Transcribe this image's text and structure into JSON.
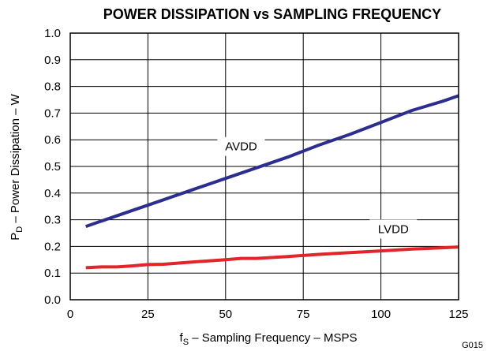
{
  "chart_data": {
    "type": "line",
    "title": "POWER DISSIPATION vs SAMPLING FREQUENCY",
    "xlabel": {
      "main": "f",
      "sub": "S",
      "rest": " – Sampling Frequency – MSPS"
    },
    "ylabel": {
      "main": "P",
      "sub": "D",
      "rest": " – Power Dissipation – W"
    },
    "xlim": [
      0,
      125
    ],
    "ylim": [
      0,
      1.0
    ],
    "x_ticks": [
      0,
      25,
      50,
      75,
      100,
      125
    ],
    "x_tick_labels": [
      "0",
      "25",
      "50",
      "75",
      "100",
      "125"
    ],
    "y_ticks": [
      0,
      0.1,
      0.2,
      0.3,
      0.4,
      0.5,
      0.6,
      0.7,
      0.8,
      0.9,
      1.0
    ],
    "y_tick_labels": [
      "0.0",
      "0.1",
      "0.2",
      "0.3",
      "0.4",
      "0.5",
      "0.6",
      "0.7",
      "0.8",
      "0.9",
      "1.0"
    ],
    "grid": true,
    "series": [
      {
        "name": "AVDD",
        "color": "#2b2e8f",
        "x": [
          5,
          10,
          20,
          30,
          40,
          50,
          60,
          70,
          80,
          90,
          100,
          110,
          120,
          125
        ],
        "values": [
          0.275,
          0.295,
          0.335,
          0.375,
          0.415,
          0.455,
          0.495,
          0.535,
          0.58,
          0.62,
          0.665,
          0.71,
          0.745,
          0.765
        ]
      },
      {
        "name": "LVDD",
        "color": "#e3242b",
        "x": [
          5,
          10,
          15,
          20,
          25,
          30,
          40,
          50,
          55,
          60,
          70,
          80,
          90,
          100,
          110,
          120,
          125
        ],
        "values": [
          0.12,
          0.123,
          0.123,
          0.127,
          0.132,
          0.133,
          0.142,
          0.15,
          0.155,
          0.155,
          0.162,
          0.17,
          0.177,
          0.183,
          0.19,
          0.195,
          0.198
        ]
      }
    ],
    "annotations": [
      {
        "text": "AVDD",
        "x": 55,
        "y": 0.575
      },
      {
        "text": "LVDD",
        "x": 104,
        "y": 0.265
      }
    ],
    "figure_code": "G015"
  }
}
